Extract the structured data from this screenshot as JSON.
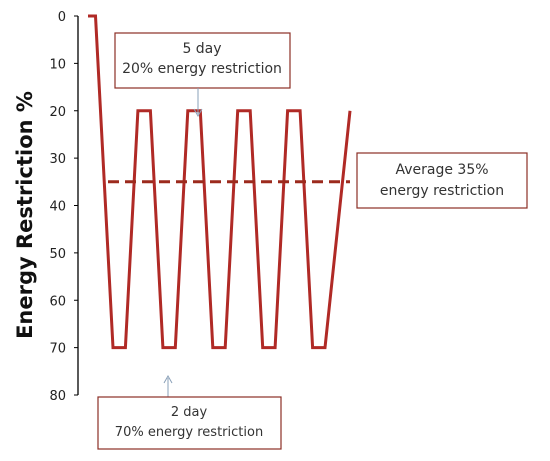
{
  "chart_data": {
    "type": "line",
    "ylabel": "Energy Restriction %",
    "ylim": [
      0,
      80
    ],
    "y_inverted": true,
    "yticks": [
      0,
      10,
      20,
      30,
      40,
      50,
      60,
      70,
      80
    ],
    "grid": false,
    "series": [
      {
        "style": "solid",
        "color": "#b02a26",
        "x": [
          0,
          0.3,
          1,
          1.5,
          2,
          2.5,
          3,
          3.5,
          4,
          4.5,
          5,
          5.5,
          6,
          6.5,
          7,
          7.5,
          8,
          8.5,
          9,
          9.5,
          10.5
        ],
        "values": [
          0,
          0,
          70,
          70,
          20,
          20,
          70,
          70,
          20,
          20,
          70,
          70,
          20,
          20,
          70,
          70,
          20,
          20,
          70,
          70,
          20
        ]
      },
      {
        "style": "dashed",
        "color": "#9c2a1d",
        "x": [
          0.8,
          10.5
        ],
        "values": [
          35,
          35
        ]
      }
    ],
    "annotations": [
      {
        "line1": "5 day",
        "line2": "20% energy restriction"
      },
      {
        "line1": "Average 35%",
        "line2": "energy restriction"
      },
      {
        "line1": "2 day",
        "line2": "70% energy restriction"
      }
    ]
  },
  "colors": {
    "line": "#b02a26",
    "box_border": "#8b2e26",
    "axis": "#000000"
  }
}
